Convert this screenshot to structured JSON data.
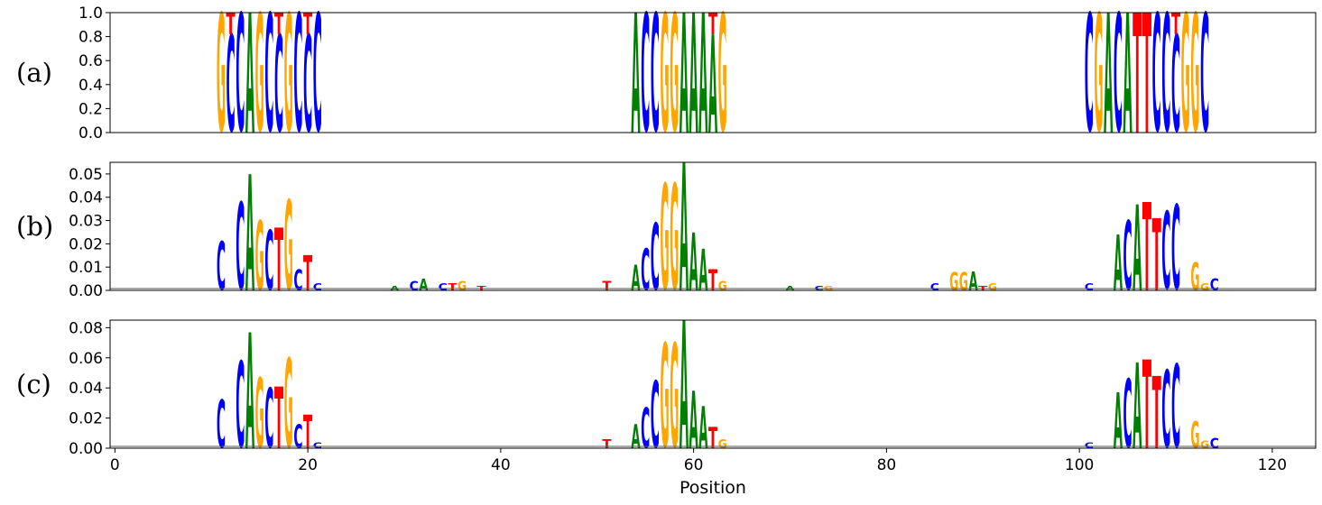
{
  "colors": {
    "A": "#008000",
    "C": "#0000ff",
    "G": "#ffa500",
    "T": "#ff0000"
  },
  "chart_data": [
    {
      "type": "sequence-logo",
      "panel_label": "(a)",
      "ylim": [
        0,
        1.0
      ],
      "yticks": [
        "0.0",
        "0.2",
        "0.4",
        "0.6",
        "0.8",
        "1.0"
      ],
      "xlim": [
        -0.5,
        124.5
      ],
      "positions": [
        {
          "pos": 11,
          "stack": [
            [
              "G",
              1.0
            ]
          ]
        },
        {
          "pos": 12,
          "stack": [
            [
              "C",
              0.82
            ],
            [
              "T",
              0.18
            ]
          ]
        },
        {
          "pos": 13,
          "stack": [
            [
              "C",
              1.0
            ]
          ]
        },
        {
          "pos": 14,
          "stack": [
            [
              "A",
              1.0
            ]
          ]
        },
        {
          "pos": 15,
          "stack": [
            [
              "G",
              1.0
            ]
          ]
        },
        {
          "pos": 16,
          "stack": [
            [
              "C",
              1.0
            ]
          ]
        },
        {
          "pos": 17,
          "stack": [
            [
              "C",
              0.82
            ],
            [
              "T",
              0.18
            ]
          ]
        },
        {
          "pos": 18,
          "stack": [
            [
              "G",
              1.0
            ]
          ]
        },
        {
          "pos": 19,
          "stack": [
            [
              "C",
              1.0
            ]
          ]
        },
        {
          "pos": 20,
          "stack": [
            [
              "C",
              0.82
            ],
            [
              "T",
              0.18
            ]
          ]
        },
        {
          "pos": 21,
          "stack": [
            [
              "C",
              1.0
            ]
          ]
        },
        {
          "pos": 54,
          "stack": [
            [
              "A",
              1.0
            ]
          ]
        },
        {
          "pos": 55,
          "stack": [
            [
              "C",
              1.0
            ]
          ]
        },
        {
          "pos": 56,
          "stack": [
            [
              "C",
              1.0
            ]
          ]
        },
        {
          "pos": 57,
          "stack": [
            [
              "G",
              1.0
            ]
          ]
        },
        {
          "pos": 58,
          "stack": [
            [
              "G",
              1.0
            ]
          ]
        },
        {
          "pos": 59,
          "stack": [
            [
              "A",
              1.0
            ]
          ]
        },
        {
          "pos": 60,
          "stack": [
            [
              "A",
              1.0
            ]
          ]
        },
        {
          "pos": 61,
          "stack": [
            [
              "A",
              1.0
            ]
          ]
        },
        {
          "pos": 62,
          "stack": [
            [
              "A",
              0.82
            ],
            [
              "T",
              0.18
            ]
          ]
        },
        {
          "pos": 63,
          "stack": [
            [
              "G",
              1.0
            ]
          ]
        },
        {
          "pos": 101,
          "stack": [
            [
              "C",
              1.0
            ]
          ]
        },
        {
          "pos": 102,
          "stack": [
            [
              "G",
              1.0
            ]
          ]
        },
        {
          "pos": 103,
          "stack": [
            [
              "A",
              1.0
            ]
          ]
        },
        {
          "pos": 104,
          "stack": [
            [
              "C",
              1.0
            ]
          ]
        },
        {
          "pos": 105,
          "stack": [
            [
              "A",
              1.0
            ]
          ]
        },
        {
          "pos": 106,
          "stack": [
            [
              "T",
              1.0
            ]
          ]
        },
        {
          "pos": 107,
          "stack": [
            [
              "T",
              1.0
            ]
          ]
        },
        {
          "pos": 108,
          "stack": [
            [
              "C",
              1.0
            ]
          ]
        },
        {
          "pos": 109,
          "stack": [
            [
              "C",
              1.0
            ]
          ]
        },
        {
          "pos": 110,
          "stack": [
            [
              "C",
              0.82
            ],
            [
              "T",
              0.18
            ]
          ]
        },
        {
          "pos": 111,
          "stack": [
            [
              "G",
              1.0
            ]
          ]
        },
        {
          "pos": 112,
          "stack": [
            [
              "G",
              1.0
            ]
          ]
        },
        {
          "pos": 113,
          "stack": [
            [
              "C",
              1.0
            ]
          ]
        }
      ]
    },
    {
      "type": "sequence-logo",
      "panel_label": "(b)",
      "ylim": [
        0,
        0.055
      ],
      "yticks": [
        "0.00",
        "0.01",
        "0.02",
        "0.03",
        "0.04",
        "0.05"
      ],
      "xlim": [
        -0.5,
        124.5
      ],
      "positions": [
        {
          "pos": 11,
          "stack": [
            [
              "C",
              0.021
            ]
          ]
        },
        {
          "pos": 13,
          "stack": [
            [
              "C",
              0.038
            ]
          ]
        },
        {
          "pos": 14,
          "stack": [
            [
              "A",
              0.05
            ]
          ]
        },
        {
          "pos": 15,
          "stack": [
            [
              "G",
              0.03
            ]
          ]
        },
        {
          "pos": 16,
          "stack": [
            [
              "C",
              0.026
            ]
          ]
        },
        {
          "pos": 17,
          "stack": [
            [
              "T",
              0.027
            ]
          ]
        },
        {
          "pos": 18,
          "stack": [
            [
              "G",
              0.039
            ]
          ]
        },
        {
          "pos": 19,
          "stack": [
            [
              "C",
              0.009
            ]
          ]
        },
        {
          "pos": 20,
          "stack": [
            [
              "T",
              0.015
            ]
          ]
        },
        {
          "pos": 21,
          "stack": [
            [
              "C",
              0.003
            ]
          ]
        },
        {
          "pos": 29,
          "stack": [
            [
              "A",
              0.002
            ]
          ]
        },
        {
          "pos": 31,
          "stack": [
            [
              "C",
              0.004
            ]
          ]
        },
        {
          "pos": 32,
          "stack": [
            [
              "A",
              0.005
            ]
          ]
        },
        {
          "pos": 34,
          "stack": [
            [
              "C",
              0.003
            ]
          ]
        },
        {
          "pos": 35,
          "stack": [
            [
              "T",
              0.003
            ]
          ]
        },
        {
          "pos": 36,
          "stack": [
            [
              "G",
              0.004
            ]
          ]
        },
        {
          "pos": 38,
          "stack": [
            [
              "T",
              0.002
            ]
          ]
        },
        {
          "pos": 51,
          "stack": [
            [
              "T",
              0.004
            ]
          ]
        },
        {
          "pos": 54,
          "stack": [
            [
              "A",
              0.011
            ]
          ]
        },
        {
          "pos": 55,
          "stack": [
            [
              "C",
              0.018
            ]
          ]
        },
        {
          "pos": 56,
          "stack": [
            [
              "C",
              0.029
            ]
          ]
        },
        {
          "pos": 57,
          "stack": [
            [
              "G",
              0.046
            ]
          ]
        },
        {
          "pos": 58,
          "stack": [
            [
              "G",
              0.046
            ]
          ]
        },
        {
          "pos": 59,
          "stack": [
            [
              "A",
              0.055
            ]
          ]
        },
        {
          "pos": 60,
          "stack": [
            [
              "A",
              0.025
            ]
          ]
        },
        {
          "pos": 61,
          "stack": [
            [
              "A",
              0.018
            ]
          ]
        },
        {
          "pos": 62,
          "stack": [
            [
              "T",
              0.009
            ]
          ]
        },
        {
          "pos": 63,
          "stack": [
            [
              "G",
              0.004
            ]
          ]
        },
        {
          "pos": 70,
          "stack": [
            [
              "A",
              0.002
            ]
          ]
        },
        {
          "pos": 73,
          "stack": [
            [
              "C",
              0.002
            ]
          ]
        },
        {
          "pos": 74,
          "stack": [
            [
              "G",
              0.002
            ]
          ]
        },
        {
          "pos": 85,
          "stack": [
            [
              "C",
              0.003
            ]
          ]
        },
        {
          "pos": 87,
          "stack": [
            [
              "G",
              0.008
            ]
          ]
        },
        {
          "pos": 88,
          "stack": [
            [
              "G",
              0.008
            ]
          ]
        },
        {
          "pos": 89,
          "stack": [
            [
              "A",
              0.008
            ]
          ]
        },
        {
          "pos": 90,
          "stack": [
            [
              "T",
              0.002
            ]
          ]
        },
        {
          "pos": 91,
          "stack": [
            [
              "G",
              0.003
            ]
          ]
        },
        {
          "pos": 101,
          "stack": [
            [
              "C",
              0.003
            ]
          ]
        },
        {
          "pos": 104,
          "stack": [
            [
              "A",
              0.024
            ]
          ]
        },
        {
          "pos": 105,
          "stack": [
            [
              "C",
              0.03
            ]
          ]
        },
        {
          "pos": 106,
          "stack": [
            [
              "A",
              0.037
            ]
          ]
        },
        {
          "pos": 107,
          "stack": [
            [
              "T",
              0.038
            ]
          ]
        },
        {
          "pos": 108,
          "stack": [
            [
              "T",
              0.031
            ]
          ]
        },
        {
          "pos": 109,
          "stack": [
            [
              "C",
              0.034
            ]
          ]
        },
        {
          "pos": 110,
          "stack": [
            [
              "C",
              0.037
            ]
          ]
        },
        {
          "pos": 112,
          "stack": [
            [
              "G",
              0.012
            ]
          ]
        },
        {
          "pos": 113,
          "stack": [
            [
              "G",
              0.003
            ]
          ]
        },
        {
          "pos": 114,
          "stack": [
            [
              "C",
              0.005
            ]
          ]
        }
      ]
    },
    {
      "type": "sequence-logo",
      "panel_label": "(c)",
      "ylim": [
        0,
        0.085
      ],
      "yticks": [
        "0.00",
        "0.02",
        "0.04",
        "0.06",
        "0.08"
      ],
      "xlim": [
        -0.5,
        124.5
      ],
      "xticks": [
        "0",
        "20",
        "40",
        "60",
        "80",
        "100",
        "120"
      ],
      "xlabel": "Position",
      "positions": [
        {
          "pos": 11,
          "stack": [
            [
              "C",
              0.032
            ]
          ]
        },
        {
          "pos": 13,
          "stack": [
            [
              "C",
              0.058
            ]
          ]
        },
        {
          "pos": 14,
          "stack": [
            [
              "A",
              0.077
            ]
          ]
        },
        {
          "pos": 15,
          "stack": [
            [
              "G",
              0.047
            ]
          ]
        },
        {
          "pos": 16,
          "stack": [
            [
              "C",
              0.04
            ]
          ]
        },
        {
          "pos": 17,
          "stack": [
            [
              "T",
              0.041
            ]
          ]
        },
        {
          "pos": 18,
          "stack": [
            [
              "G",
              0.06
            ]
          ]
        },
        {
          "pos": 19,
          "stack": [
            [
              "C",
              0.016
            ]
          ]
        },
        {
          "pos": 20,
          "stack": [
            [
              "T",
              0.022
            ]
          ]
        },
        {
          "pos": 21,
          "stack": [
            [
              "C",
              0.004
            ]
          ]
        },
        {
          "pos": 51,
          "stack": [
            [
              "T",
              0.006
            ]
          ]
        },
        {
          "pos": 54,
          "stack": [
            [
              "A",
              0.016
            ]
          ]
        },
        {
          "pos": 55,
          "stack": [
            [
              "C",
              0.027
            ]
          ]
        },
        {
          "pos": 56,
          "stack": [
            [
              "C",
              0.045
            ]
          ]
        },
        {
          "pos": 57,
          "stack": [
            [
              "G",
              0.07
            ]
          ]
        },
        {
          "pos": 58,
          "stack": [
            [
              "G",
              0.07
            ]
          ]
        },
        {
          "pos": 59,
          "stack": [
            [
              "A",
              0.085
            ]
          ]
        },
        {
          "pos": 60,
          "stack": [
            [
              "A",
              0.038
            ]
          ]
        },
        {
          "pos": 61,
          "stack": [
            [
              "A",
              0.028
            ]
          ]
        },
        {
          "pos": 62,
          "stack": [
            [
              "T",
              0.014
            ]
          ]
        },
        {
          "pos": 63,
          "stack": [
            [
              "G",
              0.006
            ]
          ]
        },
        {
          "pos": 101,
          "stack": [
            [
              "C",
              0.004
            ]
          ]
        },
        {
          "pos": 104,
          "stack": [
            [
              "A",
              0.037
            ]
          ]
        },
        {
          "pos": 105,
          "stack": [
            [
              "C",
              0.046
            ]
          ]
        },
        {
          "pos": 106,
          "stack": [
            [
              "A",
              0.057
            ]
          ]
        },
        {
          "pos": 107,
          "stack": [
            [
              "T",
              0.059
            ]
          ]
        },
        {
          "pos": 108,
          "stack": [
            [
              "T",
              0.048
            ]
          ]
        },
        {
          "pos": 109,
          "stack": [
            [
              "C",
              0.052
            ]
          ]
        },
        {
          "pos": 110,
          "stack": [
            [
              "C",
              0.056
            ]
          ]
        },
        {
          "pos": 112,
          "stack": [
            [
              "G",
              0.018
            ]
          ]
        },
        {
          "pos": 113,
          "stack": [
            [
              "G",
              0.005
            ]
          ]
        },
        {
          "pos": 114,
          "stack": [
            [
              "C",
              0.007
            ]
          ]
        }
      ]
    }
  ]
}
